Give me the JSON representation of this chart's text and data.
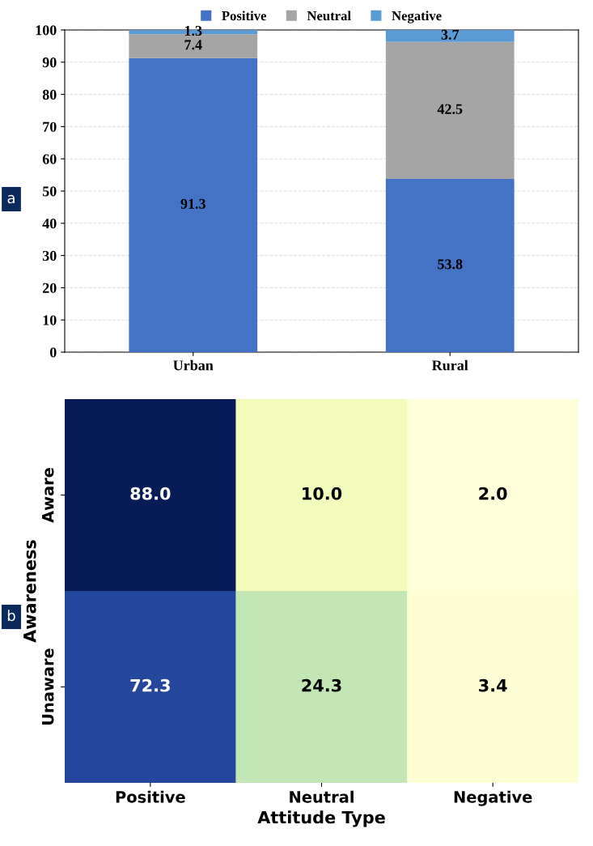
{
  "chart_data": [
    {
      "type": "bar",
      "stacked": true,
      "categories": [
        "Urban",
        "Rural"
      ],
      "series": [
        {
          "name": "Positive",
          "color": "#4472c4",
          "values": [
            91.3,
            53.8
          ]
        },
        {
          "name": "Neutral",
          "color": "#a5a5a5",
          "values": [
            7.4,
            42.5
          ]
        },
        {
          "name": "Negative",
          "color": "#5b9bd5",
          "values": [
            1.3,
            3.7
          ]
        }
      ],
      "ylim": [
        0,
        100
      ],
      "yticks": [
        0,
        10,
        20,
        30,
        40,
        50,
        60,
        70,
        80,
        90,
        100
      ],
      "grid": "y",
      "legend": "top",
      "data_labels": true,
      "annotations": [
        "a"
      ]
    },
    {
      "type": "heatmap",
      "categories": [
        "Positive",
        "Neutral",
        "Negative"
      ],
      "y_categories": [
        "Aware",
        "Unaware"
      ],
      "cells": [
        [
          88.0,
          10.0,
          2.0
        ],
        [
          72.3,
          24.3,
          3.4
        ]
      ],
      "cell_labels": [
        [
          "88.0",
          "10.0",
          "2.0"
        ],
        [
          "72.3",
          "24.3",
          "3.4"
        ]
      ],
      "xlabel": "Attitude Type",
      "ylabel": "Awareness",
      "annotations": [
        "b"
      ]
    }
  ]
}
